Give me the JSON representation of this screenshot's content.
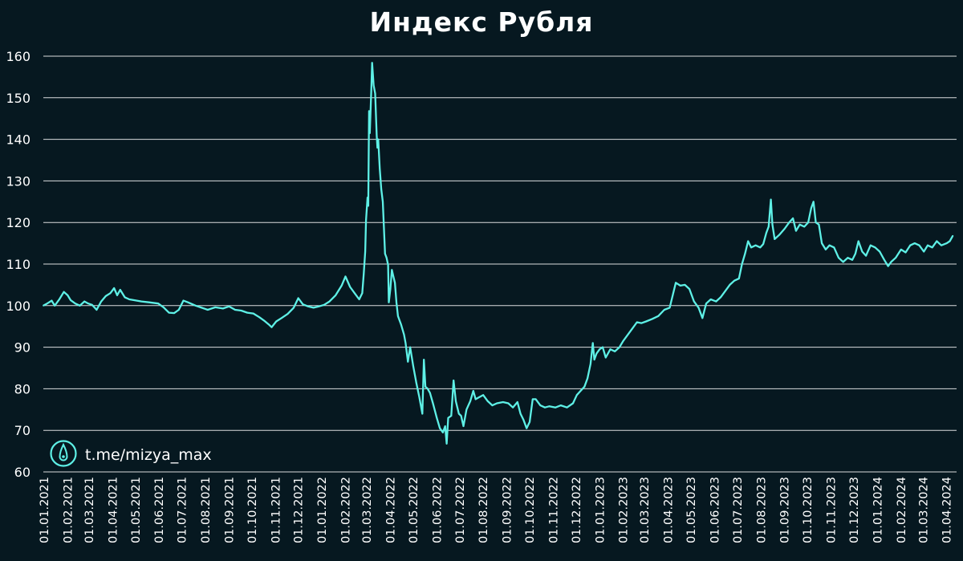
{
  "colors": {
    "background": "#061820",
    "line": "#5ef0e6",
    "grid": "#ffffff",
    "text": "#ffffff"
  },
  "watermark": {
    "text": "t.me/mizya_max",
    "icon": "location-pin-icon"
  },
  "chart_data": {
    "type": "line",
    "title": "Индекс Рубля",
    "xlabel": "",
    "ylabel": "",
    "ylim": [
      60,
      160
    ],
    "yticks": [
      "60",
      "70",
      "80",
      "90",
      "100",
      "110",
      "120",
      "130",
      "140",
      "150",
      "160"
    ],
    "xticks": [
      "01.01.2021",
      "01.02.2021",
      "01.03.2021",
      "01.04.2021",
      "01.05.2021",
      "01.06.2021",
      "01.07.2021",
      "01.08.2021",
      "01.09.2021",
      "01.10.2021",
      "01.11.2021",
      "01.12.2021",
      "01.01.2022",
      "01.02.2022",
      "01.03.2022",
      "01.04.2022",
      "01.05.2022",
      "01.06.2022",
      "01.07.2022",
      "01.08.2022",
      "01.09.2022",
      "01.10.2022",
      "01.11.2022",
      "01.12.2022",
      "01.01.2023",
      "01.02.2023",
      "01.03.2023",
      "01.04.2023",
      "01.05.2023",
      "01.06.2023",
      "01.07.2023",
      "01.08.2023",
      "01.09.2023",
      "01.10.2023",
      "01.11.2023",
      "01.12.2023",
      "01.01.2024",
      "01.02.2024",
      "01.03.2024",
      "01.04.2024"
    ],
    "grid": true,
    "legend": "none",
    "series": [
      {
        "points": [
          [
            "2021-01-01",
            100.0
          ],
          [
            "2021-01-06",
            100.5
          ],
          [
            "2021-01-12",
            101.2
          ],
          [
            "2021-01-16",
            100.0
          ],
          [
            "2021-01-22",
            101.5
          ],
          [
            "2021-01-28",
            103.3
          ],
          [
            "2021-02-02",
            102.5
          ],
          [
            "2021-02-06",
            101.3
          ],
          [
            "2021-02-12",
            100.5
          ],
          [
            "2021-02-18",
            100.0
          ],
          [
            "2021-02-24",
            101.0
          ],
          [
            "2021-03-01",
            100.5
          ],
          [
            "2021-03-06",
            100.2
          ],
          [
            "2021-03-12",
            99.0
          ],
          [
            "2021-03-18",
            101.0
          ],
          [
            "2021-03-24",
            102.3
          ],
          [
            "2021-03-30",
            103.0
          ],
          [
            "2021-04-04",
            104.2
          ],
          [
            "2021-04-08",
            102.5
          ],
          [
            "2021-04-12",
            103.8
          ],
          [
            "2021-04-18",
            102.0
          ],
          [
            "2021-04-24",
            101.5
          ],
          [
            "2021-05-01",
            101.3
          ],
          [
            "2021-05-10",
            101.0
          ],
          [
            "2021-05-20",
            100.8
          ],
          [
            "2021-06-01",
            100.5
          ],
          [
            "2021-06-08",
            99.6
          ],
          [
            "2021-06-15",
            98.3
          ],
          [
            "2021-06-22",
            98.2
          ],
          [
            "2021-06-28",
            99.0
          ],
          [
            "2021-07-04",
            101.2
          ],
          [
            "2021-07-10",
            100.8
          ],
          [
            "2021-07-20",
            100.0
          ],
          [
            "2021-07-28",
            99.5
          ],
          [
            "2021-08-05",
            99.0
          ],
          [
            "2021-08-15",
            99.6
          ],
          [
            "2021-08-25",
            99.3
          ],
          [
            "2021-09-02",
            99.8
          ],
          [
            "2021-09-10",
            99.0
          ],
          [
            "2021-09-18",
            98.8
          ],
          [
            "2021-09-26",
            98.3
          ],
          [
            "2021-10-04",
            98.1
          ],
          [
            "2021-10-12",
            97.2
          ],
          [
            "2021-10-18",
            96.4
          ],
          [
            "2021-10-24",
            95.5
          ],
          [
            "2021-10-28",
            94.8
          ],
          [
            "2021-11-03",
            96.2
          ],
          [
            "2021-11-10",
            97.0
          ],
          [
            "2021-11-18",
            98.0
          ],
          [
            "2021-11-26",
            99.5
          ],
          [
            "2021-12-02",
            101.8
          ],
          [
            "2021-12-08",
            100.3
          ],
          [
            "2021-12-15",
            99.8
          ],
          [
            "2021-12-22",
            99.5
          ],
          [
            "2021-12-29",
            99.8
          ],
          [
            "2022-01-05",
            100.2
          ],
          [
            "2022-01-12",
            101.0
          ],
          [
            "2022-01-20",
            102.5
          ],
          [
            "2022-01-28",
            104.8
          ],
          [
            "2022-02-02",
            107.0
          ],
          [
            "2022-02-08",
            104.5
          ],
          [
            "2022-02-14",
            103.0
          ],
          [
            "2022-02-20",
            101.5
          ],
          [
            "2022-02-24",
            103.0
          ],
          [
            "2022-02-26",
            107.5
          ],
          [
            "2022-02-28",
            113.0
          ],
          [
            "2022-03-01",
            120.5
          ],
          [
            "2022-03-03",
            126.0
          ],
          [
            "2022-03-04",
            124.0
          ],
          [
            "2022-03-05",
            146.8
          ],
          [
            "2022-03-06",
            141.5
          ],
          [
            "2022-03-08",
            152.0
          ],
          [
            "2022-03-09",
            158.4
          ],
          [
            "2022-03-11",
            153.0
          ],
          [
            "2022-03-13",
            151.0
          ],
          [
            "2022-03-15",
            141.0
          ],
          [
            "2022-03-16",
            138.0
          ],
          [
            "2022-03-17",
            140.0
          ],
          [
            "2022-03-19",
            133.0
          ],
          [
            "2022-03-21",
            128.0
          ],
          [
            "2022-03-23",
            125.0
          ],
          [
            "2022-03-26",
            112.5
          ],
          [
            "2022-03-28",
            111.5
          ],
          [
            "2022-03-30",
            109.8
          ],
          [
            "2022-03-31",
            100.8
          ],
          [
            "2022-04-02",
            104.0
          ],
          [
            "2022-04-04",
            108.6
          ],
          [
            "2022-04-06",
            107.0
          ],
          [
            "2022-04-08",
            105.5
          ],
          [
            "2022-04-10",
            100.8
          ],
          [
            "2022-04-12",
            97.5
          ],
          [
            "2022-04-16",
            95.5
          ],
          [
            "2022-04-20",
            93.0
          ],
          [
            "2022-04-22",
            91.0
          ],
          [
            "2022-04-25",
            86.5
          ],
          [
            "2022-04-28",
            90.0
          ],
          [
            "2022-05-02",
            85.5
          ],
          [
            "2022-05-06",
            81.5
          ],
          [
            "2022-05-10",
            78.0
          ],
          [
            "2022-05-14",
            74.0
          ],
          [
            "2022-05-16",
            87.0
          ],
          [
            "2022-05-18",
            80.5
          ],
          [
            "2022-05-21",
            80.0
          ],
          [
            "2022-05-24",
            79.0
          ],
          [
            "2022-05-28",
            76.5
          ],
          [
            "2022-06-02",
            73.0
          ],
          [
            "2022-06-06",
            70.5
          ],
          [
            "2022-06-10",
            69.5
          ],
          [
            "2022-06-13",
            71.0
          ],
          [
            "2022-06-15",
            66.8
          ],
          [
            "2022-06-17",
            73.0
          ],
          [
            "2022-06-21",
            73.5
          ],
          [
            "2022-06-24",
            82.0
          ],
          [
            "2022-06-27",
            77.0
          ],
          [
            "2022-07-01",
            74.0
          ],
          [
            "2022-07-04",
            73.5
          ],
          [
            "2022-07-07",
            71.0
          ],
          [
            "2022-07-11",
            75.0
          ],
          [
            "2022-07-16",
            77.0
          ],
          [
            "2022-07-20",
            79.5
          ],
          [
            "2022-07-23",
            77.5
          ],
          [
            "2022-07-28",
            78.0
          ],
          [
            "2022-08-02",
            78.5
          ],
          [
            "2022-08-08",
            77.0
          ],
          [
            "2022-08-14",
            76.0
          ],
          [
            "2022-08-20",
            76.5
          ],
          [
            "2022-08-28",
            76.8
          ],
          [
            "2022-09-04",
            76.5
          ],
          [
            "2022-09-10",
            75.5
          ],
          [
            "2022-09-16",
            76.8
          ],
          [
            "2022-09-20",
            74.0
          ],
          [
            "2022-09-24",
            72.5
          ],
          [
            "2022-09-28",
            70.5
          ],
          [
            "2022-10-02",
            72.0
          ],
          [
            "2022-10-06",
            77.5
          ],
          [
            "2022-10-10",
            77.5
          ],
          [
            "2022-10-16",
            76.0
          ],
          [
            "2022-10-22",
            75.5
          ],
          [
            "2022-10-28",
            75.8
          ],
          [
            "2022-11-05",
            75.5
          ],
          [
            "2022-11-12",
            76.0
          ],
          [
            "2022-11-20",
            75.5
          ],
          [
            "2022-11-28",
            76.5
          ],
          [
            "2022-12-03",
            78.5
          ],
          [
            "2022-12-08",
            79.5
          ],
          [
            "2022-12-13",
            80.5
          ],
          [
            "2022-12-17",
            82.5
          ],
          [
            "2022-12-21",
            86.0
          ],
          [
            "2022-12-24",
            91.0
          ],
          [
            "2022-12-26",
            87.0
          ],
          [
            "2022-12-29",
            88.5
          ],
          [
            "2023-01-02",
            89.5
          ],
          [
            "2023-01-06",
            90.0
          ],
          [
            "2023-01-10",
            87.5
          ],
          [
            "2023-01-16",
            89.5
          ],
          [
            "2023-01-22",
            89.0
          ],
          [
            "2023-01-28",
            90.0
          ],
          [
            "2023-02-02",
            91.5
          ],
          [
            "2023-02-08",
            93.0
          ],
          [
            "2023-02-14",
            94.5
          ],
          [
            "2023-02-20",
            96.0
          ],
          [
            "2023-02-26",
            95.8
          ],
          [
            "2023-03-04",
            96.2
          ],
          [
            "2023-03-12",
            96.8
          ],
          [
            "2023-03-20",
            97.5
          ],
          [
            "2023-03-28",
            99.0
          ],
          [
            "2023-04-04",
            99.5
          ],
          [
            "2023-04-08",
            102.5
          ],
          [
            "2023-04-12",
            105.5
          ],
          [
            "2023-04-18",
            104.8
          ],
          [
            "2023-04-24",
            105.0
          ],
          [
            "2023-04-30",
            104.0
          ],
          [
            "2023-05-06",
            101.0
          ],
          [
            "2023-05-12",
            99.5
          ],
          [
            "2023-05-17",
            97.0
          ],
          [
            "2023-05-22",
            100.5
          ],
          [
            "2023-05-28",
            101.5
          ],
          [
            "2023-06-04",
            101.0
          ],
          [
            "2023-06-10",
            102.0
          ],
          [
            "2023-06-16",
            103.5
          ],
          [
            "2023-06-22",
            105.0
          ],
          [
            "2023-06-28",
            106.0
          ],
          [
            "2023-07-04",
            106.5
          ],
          [
            "2023-07-08",
            110.0
          ],
          [
            "2023-07-12",
            112.5
          ],
          [
            "2023-07-16",
            115.5
          ],
          [
            "2023-07-20",
            114.0
          ],
          [
            "2023-07-26",
            114.5
          ],
          [
            "2023-08-01",
            114.0
          ],
          [
            "2023-08-05",
            114.8
          ],
          [
            "2023-08-09",
            117.5
          ],
          [
            "2023-08-12",
            119.0
          ],
          [
            "2023-08-15",
            125.5
          ],
          [
            "2023-08-17",
            119.5
          ],
          [
            "2023-08-20",
            116.0
          ],
          [
            "2023-08-26",
            117.0
          ],
          [
            "2023-09-02",
            118.5
          ],
          [
            "2023-09-08",
            120.0
          ],
          [
            "2023-09-13",
            121.0
          ],
          [
            "2023-09-17",
            118.0
          ],
          [
            "2023-09-22",
            119.5
          ],
          [
            "2023-09-28",
            119.0
          ],
          [
            "2023-10-03",
            120.0
          ],
          [
            "2023-10-07",
            123.5
          ],
          [
            "2023-10-10",
            125.0
          ],
          [
            "2023-10-13",
            120.0
          ],
          [
            "2023-10-17",
            119.5
          ],
          [
            "2023-10-21",
            115.0
          ],
          [
            "2023-10-26",
            113.5
          ],
          [
            "2023-10-31",
            114.5
          ],
          [
            "2023-11-06",
            114.0
          ],
          [
            "2023-11-12",
            111.5
          ],
          [
            "2023-11-18",
            110.5
          ],
          [
            "2023-11-24",
            111.5
          ],
          [
            "2023-11-30",
            111.0
          ],
          [
            "2023-12-04",
            112.5
          ],
          [
            "2023-12-08",
            115.5
          ],
          [
            "2023-12-13",
            113.0
          ],
          [
            "2023-12-18",
            112.0
          ],
          [
            "2023-12-24",
            114.5
          ],
          [
            "2023-12-30",
            114.0
          ],
          [
            "2024-01-05",
            113.0
          ],
          [
            "2024-01-11",
            111.0
          ],
          [
            "2024-01-16",
            109.5
          ],
          [
            "2024-01-20",
            110.5
          ],
          [
            "2024-01-26",
            111.5
          ],
          [
            "2024-02-02",
            113.5
          ],
          [
            "2024-02-08",
            112.8
          ],
          [
            "2024-02-14",
            114.5
          ],
          [
            "2024-02-20",
            115.0
          ],
          [
            "2024-02-26",
            114.5
          ],
          [
            "2024-03-03",
            113.0
          ],
          [
            "2024-03-08",
            114.5
          ],
          [
            "2024-03-14",
            114.0
          ],
          [
            "2024-03-20",
            115.5
          ],
          [
            "2024-03-26",
            114.5
          ],
          [
            "2024-04-02",
            115.0
          ],
          [
            "2024-04-06",
            115.5
          ],
          [
            "2024-04-10",
            116.8
          ]
        ]
      }
    ]
  }
}
